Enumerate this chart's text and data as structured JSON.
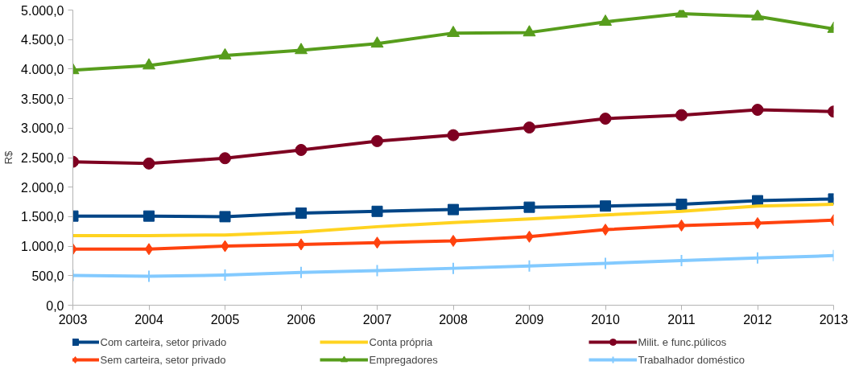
{
  "chart_data": {
    "type": "line",
    "ylabel": "R$",
    "x": [
      2003,
      2004,
      2005,
      2006,
      2007,
      2008,
      2009,
      2010,
      2011,
      2012,
      2013
    ],
    "xlim": [
      2003,
      2013
    ],
    "xticks": [
      2003,
      2004,
      2005,
      2006,
      2007,
      2008,
      2009,
      2010,
      2011,
      2012,
      2013
    ],
    "ylim": [
      0,
      5000
    ],
    "yticks": [
      {
        "value": 0,
        "label": "0,0"
      },
      {
        "value": 500,
        "label": "500,0"
      },
      {
        "value": 1000,
        "label": "1.000,0"
      },
      {
        "value": 1500,
        "label": "1.500,0"
      },
      {
        "value": 2000,
        "label": "2.000,0"
      },
      {
        "value": 2500,
        "label": "2.500,0"
      },
      {
        "value": 3000,
        "label": "3.000,0"
      },
      {
        "value": 3500,
        "label": "3.500,0"
      },
      {
        "value": 4000,
        "label": "4.000,0"
      },
      {
        "value": 4500,
        "label": "4.500,0"
      },
      {
        "value": 5000,
        "label": "5.000,0"
      }
    ],
    "grid": false,
    "legend": "bottom",
    "series": [
      {
        "name": "Com carteira, setor privado",
        "color": "#004586",
        "marker": "square",
        "values": [
          1510,
          1510,
          1500,
          1560,
          1590,
          1620,
          1660,
          1680,
          1710,
          1770,
          1800
        ]
      },
      {
        "name": "Sem carteira, setor privado",
        "color": "#ff420e",
        "marker": "diamond",
        "values": [
          950,
          950,
          1000,
          1030,
          1060,
          1090,
          1160,
          1280,
          1350,
          1390,
          1440
        ]
      },
      {
        "name": "Conta própria",
        "color": "#ffd320",
        "marker": "none",
        "values": [
          1180,
          1180,
          1190,
          1240,
          1330,
          1400,
          1460,
          1530,
          1590,
          1680,
          1710
        ]
      },
      {
        "name": "Empregadores",
        "color": "#579d1c",
        "marker": "triangle",
        "values": [
          3980,
          4060,
          4230,
          4320,
          4430,
          4610,
          4620,
          4800,
          4940,
          4890,
          4680
        ]
      },
      {
        "name": "Milit. e func.púlicos",
        "color": "#7e0021",
        "marker": "circle",
        "values": [
          2430,
          2400,
          2490,
          2630,
          2780,
          2880,
          3010,
          3160,
          3220,
          3310,
          3280
        ]
      },
      {
        "name": "Trabalhador doméstico",
        "color": "#83caff",
        "marker": "cross",
        "values": [
          505,
          490,
          510,
          555,
          585,
          625,
          665,
          710,
          755,
          800,
          840
        ]
      }
    ]
  }
}
